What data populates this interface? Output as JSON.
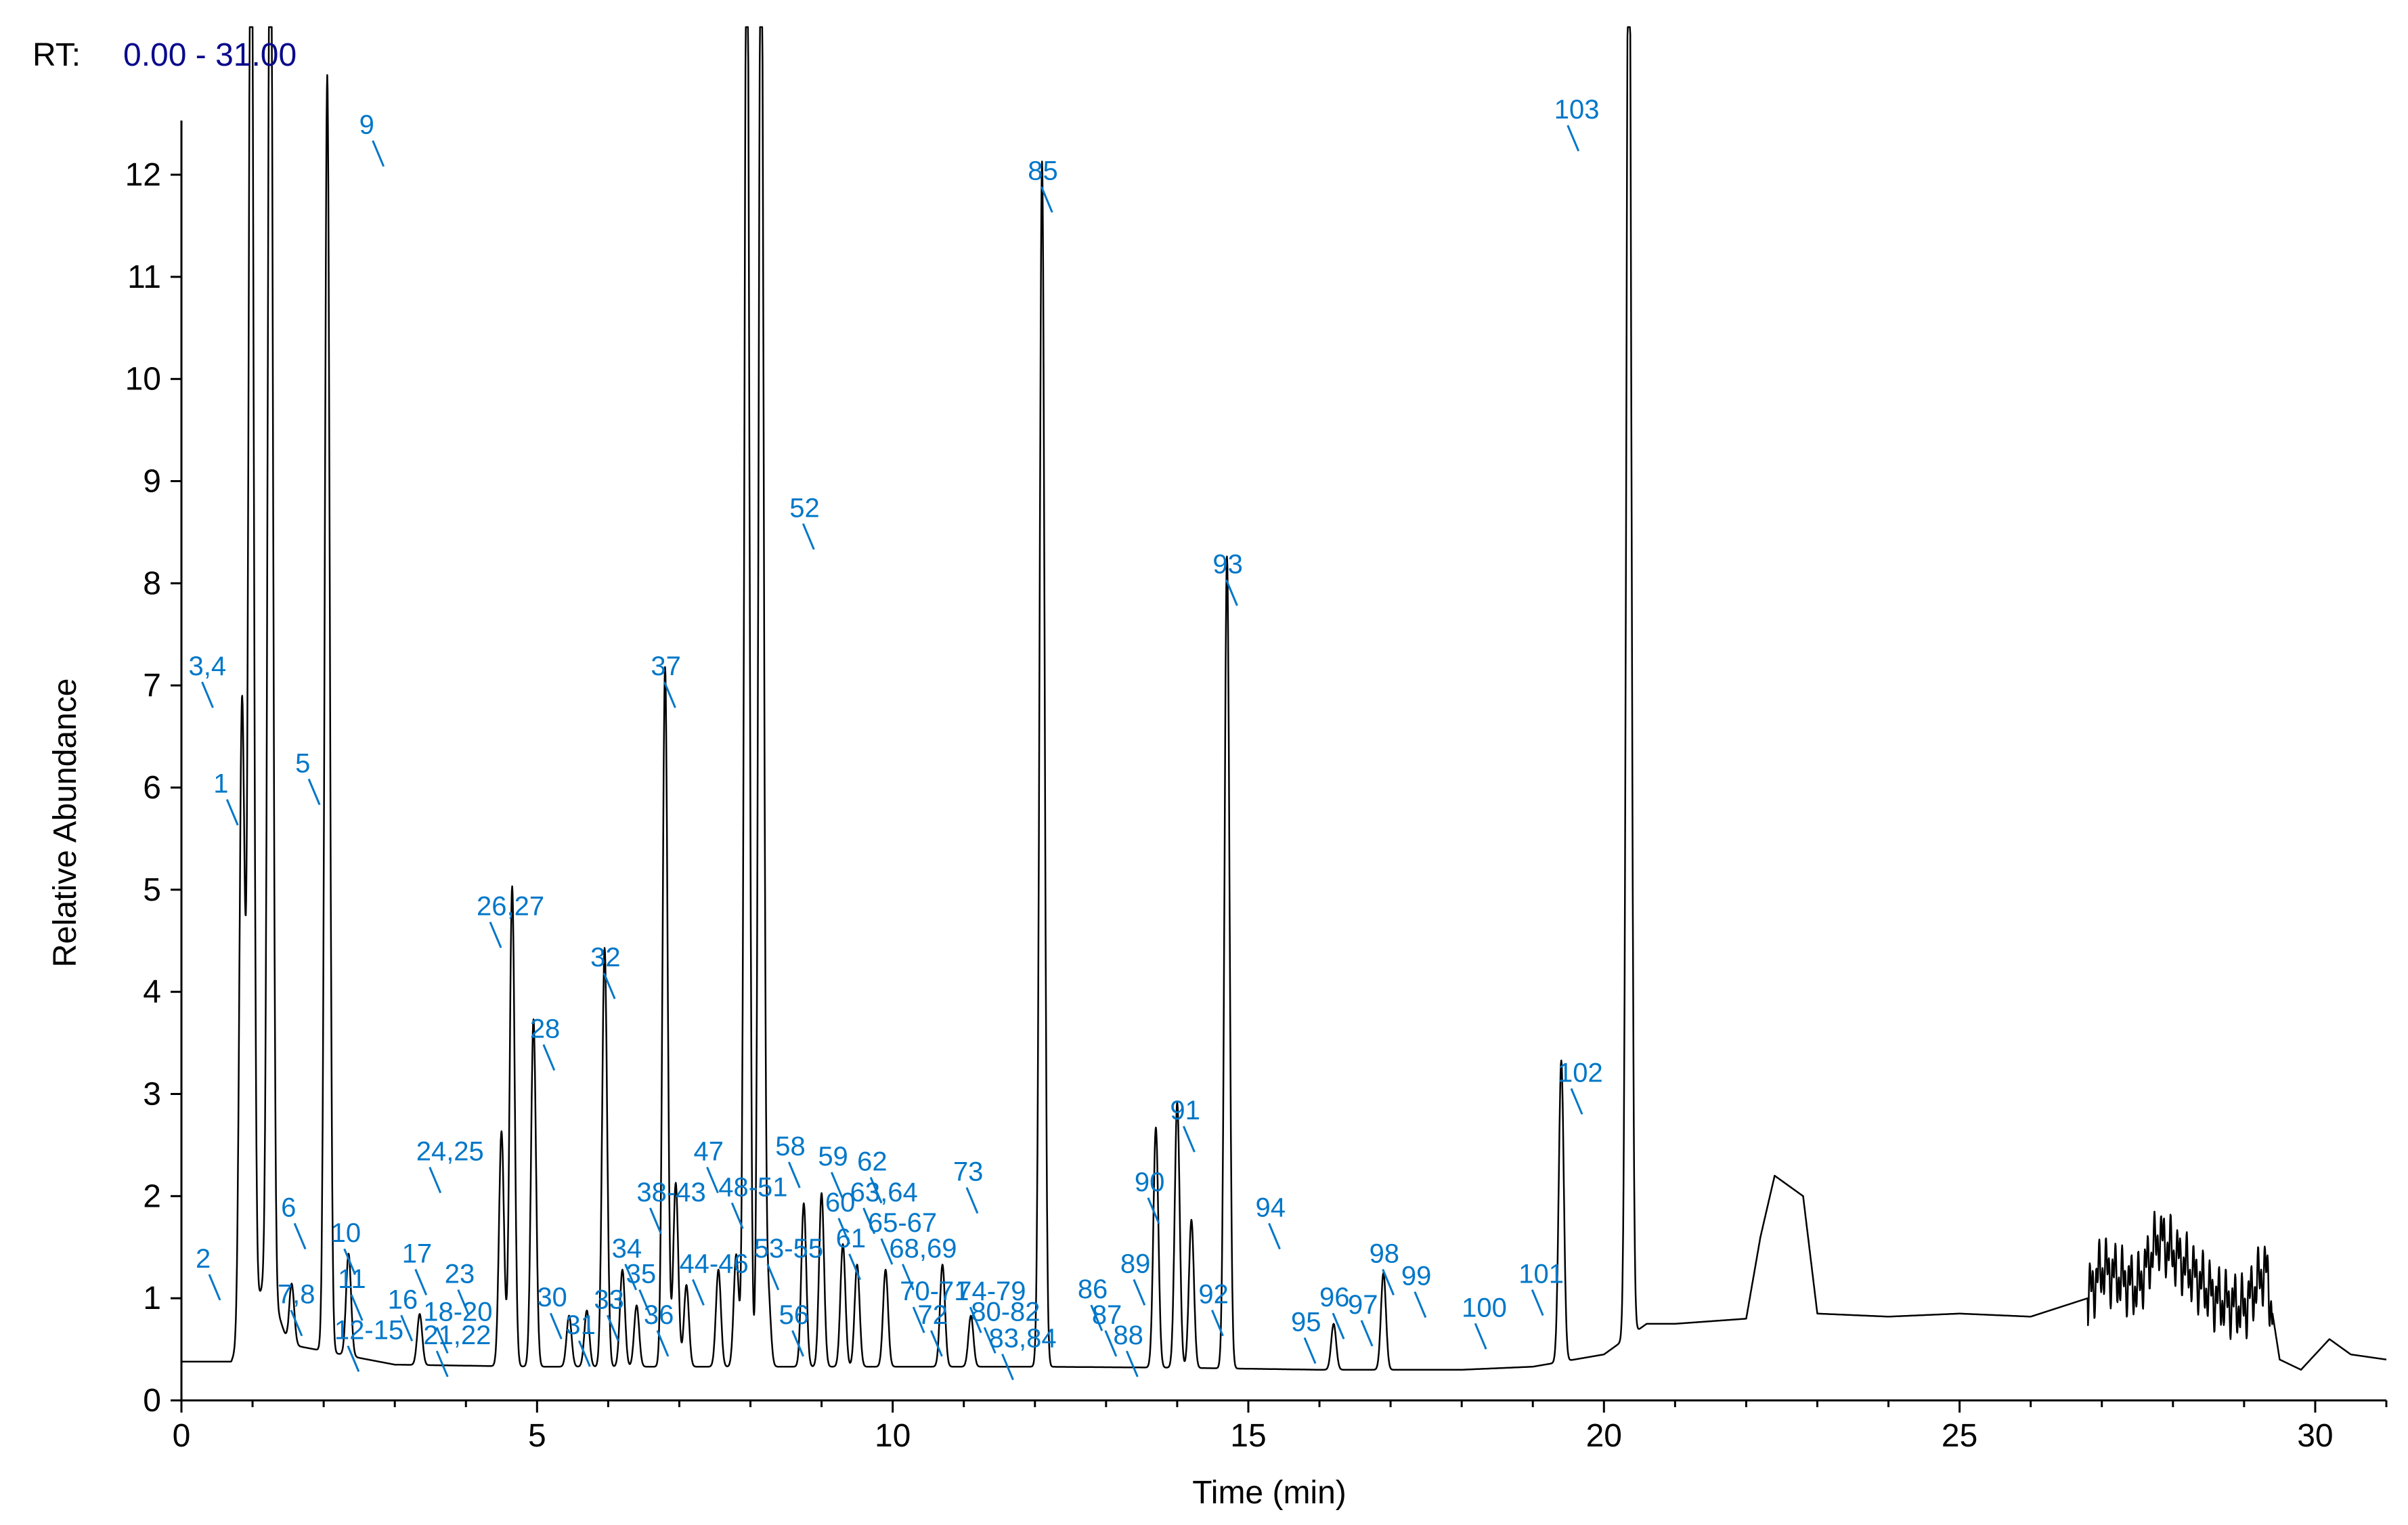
{
  "chart_data": {
    "type": "line",
    "rt_label": "RT:",
    "rt_range": "0.00 - 31.00",
    "xlabel": "Time (min)",
    "ylabel": "Relative Abundance",
    "xlim": [
      0,
      31
    ],
    "ylim": [
      0,
      12.5
    ],
    "xticks": [
      0,
      5,
      10,
      15,
      20,
      25,
      30
    ],
    "yticks": [
      0,
      1,
      2,
      3,
      4,
      5,
      6,
      7,
      8,
      9,
      10,
      11,
      12
    ],
    "colors": {
      "trace": "#000000",
      "annotation": "#0077c8",
      "rt_range": "#0a0a8c",
      "axis": "#000000"
    },
    "baseline": [
      [
        0,
        0.38
      ],
      [
        0.7,
        0.38
      ],
      [
        1.2,
        1.2
      ],
      [
        1.5,
        0.55
      ],
      [
        3,
        0.35
      ],
      [
        5,
        0.33
      ],
      [
        8,
        0.33
      ],
      [
        10,
        0.33
      ],
      [
        12,
        0.33
      ],
      [
        14,
        0.32
      ],
      [
        16,
        0.3
      ],
      [
        18,
        0.3
      ],
      [
        19,
        0.33
      ],
      [
        20,
        0.45
      ],
      [
        20.6,
        0.75
      ],
      [
        21,
        0.75
      ],
      [
        22,
        0.8
      ],
      [
        22.2,
        1.6
      ],
      [
        22.4,
        2.2
      ],
      [
        22.8,
        2.0
      ],
      [
        23,
        0.85
      ],
      [
        24,
        0.82
      ],
      [
        25,
        0.85
      ],
      [
        26,
        0.82
      ],
      [
        26.8,
        1.0
      ],
      [
        27,
        1.3
      ],
      [
        27.5,
        1.1
      ],
      [
        27.8,
        1.6
      ],
      [
        28.2,
        1.3
      ],
      [
        28.6,
        1.0
      ],
      [
        29,
        0.9
      ],
      [
        29.3,
        1.3
      ],
      [
        29.5,
        0.4
      ],
      [
        29.8,
        0.3
      ],
      [
        30.2,
        0.6
      ],
      [
        30.5,
        0.45
      ],
      [
        31,
        0.4
      ]
    ],
    "peaks": [
      {
        "rt": 0.85,
        "h": 5.95
      },
      {
        "rt": 0.9,
        "h": 0.8
      },
      {
        "rt": 0.98,
        "h": 15
      },
      {
        "rt": 1.25,
        "h": 15
      },
      {
        "rt": 1.55,
        "h": 0.6
      },
      {
        "rt": 2.05,
        "h": 12.5
      },
      {
        "rt": 2.35,
        "h": 1.0
      },
      {
        "rt": 3.35,
        "h": 0.5
      },
      {
        "rt": 4.5,
        "h": 2.3
      },
      {
        "rt": 4.65,
        "h": 4.7
      },
      {
        "rt": 4.95,
        "h": 3.4
      },
      {
        "rt": 5.45,
        "h": 0.5
      },
      {
        "rt": 5.7,
        "h": 0.55
      },
      {
        "rt": 5.95,
        "h": 4.1
      },
      {
        "rt": 6.2,
        "h": 0.95
      },
      {
        "rt": 6.4,
        "h": 0.6
      },
      {
        "rt": 6.8,
        "h": 6.85
      },
      {
        "rt": 6.95,
        "h": 1.8
      },
      {
        "rt": 7.1,
        "h": 0.8
      },
      {
        "rt": 7.55,
        "h": 0.95
      },
      {
        "rt": 7.8,
        "h": 1.1
      },
      {
        "rt": 7.95,
        "h": 15
      },
      {
        "rt": 8.15,
        "h": 15
      },
      {
        "rt": 8.25,
        "h": 0.7
      },
      {
        "rt": 8.75,
        "h": 1.6
      },
      {
        "rt": 9.0,
        "h": 1.7
      },
      {
        "rt": 9.3,
        "h": 1.2
      },
      {
        "rt": 9.5,
        "h": 1.0
      },
      {
        "rt": 9.9,
        "h": 0.95
      },
      {
        "rt": 10.7,
        "h": 1.0
      },
      {
        "rt": 11.1,
        "h": 0.5
      },
      {
        "rt": 12.1,
        "h": 11.8
      },
      {
        "rt": 13.7,
        "h": 2.35
      },
      {
        "rt": 14.0,
        "h": 2.6
      },
      {
        "rt": 14.2,
        "h": 1.45
      },
      {
        "rt": 14.7,
        "h": 7.95
      },
      {
        "rt": 16.2,
        "h": 0.45
      },
      {
        "rt": 16.9,
        "h": 0.95
      },
      {
        "rt": 19.4,
        "h": 2.95
      },
      {
        "rt": 20.35,
        "h": 15
      }
    ],
    "annotations": [
      {
        "label": "1",
        "x": 0.45,
        "y": 5.95
      },
      {
        "label": "2",
        "x": 0.2,
        "y": 1.3
      },
      {
        "label": "3,4",
        "x": 0.1,
        "y": 7.1
      },
      {
        "label": "5",
        "x": 1.6,
        "y": 6.15
      },
      {
        "label": "6",
        "x": 1.4,
        "y": 1.8
      },
      {
        "label": "7,8",
        "x": 1.35,
        "y": 0.95
      },
      {
        "label": "9",
        "x": 2.5,
        "y": 12.4
      },
      {
        "label": "10",
        "x": 2.1,
        "y": 1.55
      },
      {
        "label": "11",
        "x": 2.2,
        "y": 1.1
      },
      {
        "label": "12-15",
        "x": 2.15,
        "y": 0.6
      },
      {
        "label": "16",
        "x": 2.9,
        "y": 0.9
      },
      {
        "label": "17",
        "x": 3.1,
        "y": 1.35
      },
      {
        "label": "18-20",
        "x": 3.4,
        "y": 0.78
      },
      {
        "label": "21,22",
        "x": 3.4,
        "y": 0.55
      },
      {
        "label": "23",
        "x": 3.7,
        "y": 1.15
      },
      {
        "label": "24,25",
        "x": 3.3,
        "y": 2.35
      },
      {
        "label": "26,27",
        "x": 4.15,
        "y": 4.75
      },
      {
        "label": "28",
        "x": 4.9,
        "y": 3.55
      },
      {
        "label": "30",
        "x": 5.0,
        "y": 0.92
      },
      {
        "label": "31",
        "x": 5.4,
        "y": 0.65
      },
      {
        "label": "32",
        "x": 5.75,
        "y": 4.25
      },
      {
        "label": "33",
        "x": 5.8,
        "y": 0.9
      },
      {
        "label": "34",
        "x": 6.05,
        "y": 1.4
      },
      {
        "label": "35",
        "x": 6.25,
        "y": 1.15
      },
      {
        "label": "36",
        "x": 6.5,
        "y": 0.75
      },
      {
        "label": "37",
        "x": 6.6,
        "y": 7.1
      },
      {
        "label": "38-43",
        "x": 6.4,
        "y": 1.95
      },
      {
        "label": "44-46",
        "x": 7.0,
        "y": 1.25
      },
      {
        "label": "47",
        "x": 7.2,
        "y": 2.35
      },
      {
        "label": "48-51",
        "x": 7.55,
        "y": 2.0
      },
      {
        "label": "52",
        "x": 8.55,
        "y": 8.65
      },
      {
        "label": "53-55",
        "x": 8.05,
        "y": 1.4
      },
      {
        "label": "56",
        "x": 8.4,
        "y": 0.75
      },
      {
        "label": "58",
        "x": 8.35,
        "y": 2.4
      },
      {
        "label": "59",
        "x": 8.95,
        "y": 2.3
      },
      {
        "label": "60",
        "x": 9.05,
        "y": 1.85
      },
      {
        "label": "61",
        "x": 9.2,
        "y": 1.5
      },
      {
        "label": "62",
        "x": 9.5,
        "y": 2.25
      },
      {
        "label": "63,64",
        "x": 9.4,
        "y": 1.95
      },
      {
        "label": "65-67",
        "x": 9.65,
        "y": 1.65
      },
      {
        "label": "68,69",
        "x": 9.95,
        "y": 1.4
      },
      {
        "label": "70-71",
        "x": 10.1,
        "y": 0.98
      },
      {
        "label": "72",
        "x": 10.35,
        "y": 0.75
      },
      {
        "label": "73",
        "x": 10.85,
        "y": 2.15
      },
      {
        "label": "74-79",
        "x": 10.9,
        "y": 0.98
      },
      {
        "label": "80-82",
        "x": 11.1,
        "y": 0.78
      },
      {
        "label": "83,84",
        "x": 11.35,
        "y": 0.52
      },
      {
        "label": "85",
        "x": 11.9,
        "y": 11.95
      },
      {
        "label": "86",
        "x": 12.6,
        "y": 1.0
      },
      {
        "label": "87",
        "x": 12.8,
        "y": 0.75
      },
      {
        "label": "88",
        "x": 13.1,
        "y": 0.55
      },
      {
        "label": "89",
        "x": 13.2,
        "y": 1.25
      },
      {
        "label": "90",
        "x": 13.4,
        "y": 2.05
      },
      {
        "label": "91",
        "x": 13.9,
        "y": 2.75
      },
      {
        "label": "92",
        "x": 14.3,
        "y": 0.95
      },
      {
        "label": "93",
        "x": 14.5,
        "y": 8.1
      },
      {
        "label": "94",
        "x": 15.1,
        "y": 1.8
      },
      {
        "label": "95",
        "x": 15.6,
        "y": 0.68
      },
      {
        "label": "96",
        "x": 16.0,
        "y": 0.92
      },
      {
        "label": "97",
        "x": 16.4,
        "y": 0.85
      },
      {
        "label": "98",
        "x": 16.7,
        "y": 1.35
      },
      {
        "label": "99",
        "x": 17.15,
        "y": 1.13
      },
      {
        "label": "100",
        "x": 18.0,
        "y": 0.82
      },
      {
        "label": "101",
        "x": 18.8,
        "y": 1.15
      },
      {
        "label": "102",
        "x": 19.35,
        "y": 3.12
      },
      {
        "label": "103",
        "x": 19.3,
        "y": 12.55
      }
    ]
  }
}
